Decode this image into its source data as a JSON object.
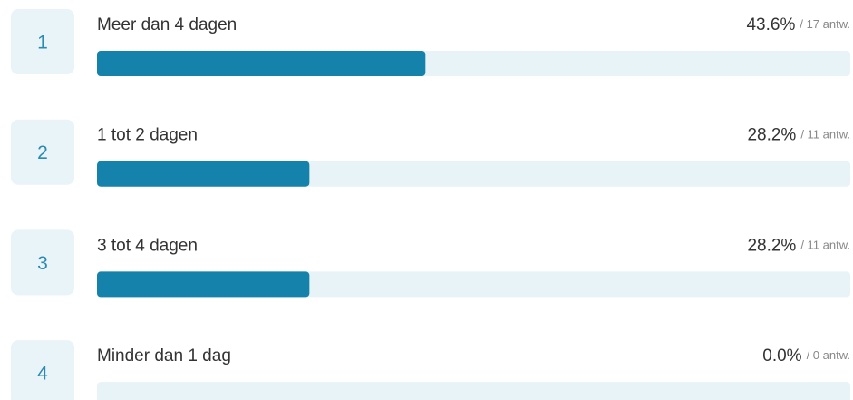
{
  "chart_data": {
    "type": "bar",
    "orientation": "horizontal",
    "ranks": [
      1,
      2,
      3,
      4
    ],
    "categories": [
      "Meer dan 4 dagen",
      "1 tot 2 dagen",
      "3 tot 4 dagen",
      "Minder dan 1 dag"
    ],
    "values": [
      43.6,
      28.2,
      28.2,
      0.0
    ],
    "value_labels": [
      "43.6%",
      "28.2%",
      "28.2%",
      "0.0%"
    ],
    "count_labels": [
      "/ 17 antw.",
      "/ 11 antw.",
      "/ 11 antw.",
      "/ 0 antw."
    ],
    "xlim": [
      0,
      100
    ],
    "color": "#1482aa",
    "track_color": "#e8f3f8"
  }
}
